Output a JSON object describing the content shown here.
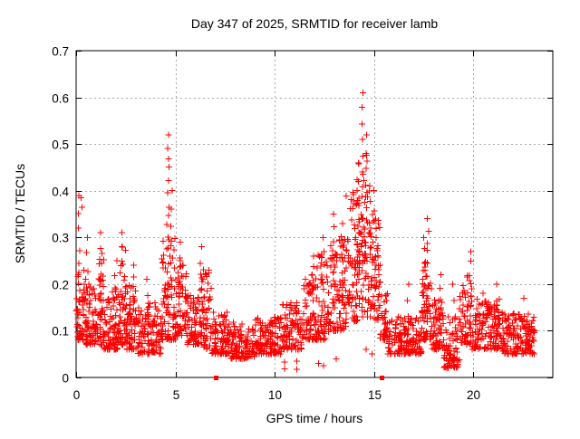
{
  "chart_data": {
    "type": "scatter",
    "title": "Day 347 of 2025, SRMTID for receiver lamb",
    "xlabel": "GPS time / hours",
    "ylabel": "SRMTID / TECUs",
    "series_name": "SRMTID",
    "marker": "plus",
    "grid": true,
    "legend": "none",
    "xlim": [
      0,
      24
    ],
    "ylim": [
      0,
      0.7
    ],
    "xticks": [
      0,
      5,
      10,
      15,
      20
    ],
    "xtick_labels": [
      "0",
      "5",
      "10",
      "15",
      "20"
    ],
    "yticks": [
      0,
      0.1,
      0.2,
      0.3,
      0.4,
      0.5,
      0.6,
      0.7
    ],
    "ytick_labels": [
      "0",
      "0.1",
      "0.2",
      "0.3",
      "0.4",
      "0.5",
      "0.6",
      "0.7"
    ],
    "colors": {
      "points": "#ff0000",
      "grid": "#a8a8a8",
      "axis": "#000000",
      "background": "#ffffff",
      "text": "#000000"
    },
    "seed": 1347,
    "bands": [
      [
        0.0,
        0.5,
        0.08,
        0.23,
        60
      ],
      [
        0.5,
        1.1,
        0.07,
        0.2,
        70
      ],
      [
        1.1,
        1.4,
        0.07,
        0.28,
        40
      ],
      [
        1.4,
        2.2,
        0.06,
        0.19,
        90
      ],
      [
        2.2,
        2.5,
        0.07,
        0.28,
        40
      ],
      [
        2.5,
        3.1,
        0.06,
        0.2,
        70
      ],
      [
        3.1,
        4.3,
        0.05,
        0.16,
        120
      ],
      [
        4.3,
        5.0,
        0.08,
        0.3,
        80
      ],
      [
        5.0,
        5.6,
        0.09,
        0.25,
        60
      ],
      [
        5.6,
        6.2,
        0.07,
        0.18,
        60
      ],
      [
        6.2,
        6.8,
        0.06,
        0.24,
        60
      ],
      [
        6.8,
        7.6,
        0.05,
        0.14,
        80
      ],
      [
        7.6,
        9.0,
        0.04,
        0.12,
        130
      ],
      [
        9.0,
        10.4,
        0.05,
        0.13,
        130
      ],
      [
        10.4,
        11.4,
        0.06,
        0.16,
        100
      ],
      [
        11.4,
        12.1,
        0.08,
        0.22,
        70
      ],
      [
        12.1,
        12.7,
        0.08,
        0.27,
        60
      ],
      [
        12.7,
        13.6,
        0.1,
        0.31,
        90
      ],
      [
        13.6,
        14.2,
        0.12,
        0.4,
        70
      ],
      [
        14.2,
        14.8,
        0.13,
        0.48,
        70
      ],
      [
        14.8,
        15.3,
        0.12,
        0.37,
        55
      ],
      [
        15.3,
        15.7,
        0.08,
        0.18,
        40
      ],
      [
        15.7,
        17.4,
        0.05,
        0.13,
        160
      ],
      [
        17.4,
        17.9,
        0.08,
        0.28,
        55
      ],
      [
        17.9,
        18.5,
        0.06,
        0.17,
        60
      ],
      [
        18.5,
        19.3,
        0.02,
        0.13,
        75
      ],
      [
        19.3,
        19.9,
        0.07,
        0.22,
        55
      ],
      [
        19.9,
        21.4,
        0.06,
        0.17,
        140
      ],
      [
        21.4,
        23.1,
        0.05,
        0.14,
        170
      ]
    ],
    "spikes": [
      [
        0.12,
        0.2,
        0.39,
        6
      ],
      [
        0.55,
        0.18,
        0.3,
        4
      ],
      [
        1.25,
        0.15,
        0.31,
        6
      ],
      [
        2.0,
        0.14,
        0.25,
        5
      ],
      [
        2.35,
        0.15,
        0.31,
        6
      ],
      [
        2.9,
        0.14,
        0.24,
        5
      ],
      [
        3.6,
        0.12,
        0.21,
        4
      ],
      [
        4.62,
        0.15,
        0.52,
        16
      ],
      [
        4.78,
        0.14,
        0.4,
        8
      ],
      [
        5.2,
        0.14,
        0.29,
        6
      ],
      [
        6.3,
        0.12,
        0.28,
        6
      ],
      [
        6.55,
        0.1,
        0.22,
        4
      ],
      [
        11.9,
        0.14,
        0.26,
        5
      ],
      [
        12.4,
        0.15,
        0.3,
        5
      ],
      [
        13.0,
        0.16,
        0.35,
        7
      ],
      [
        13.4,
        0.16,
        0.33,
        6
      ],
      [
        14.2,
        0.22,
        0.46,
        9
      ],
      [
        14.45,
        0.25,
        0.61,
        12
      ],
      [
        14.6,
        0.22,
        0.52,
        9
      ],
      [
        15.0,
        0.18,
        0.4,
        7
      ],
      [
        15.15,
        0.16,
        0.33,
        5
      ],
      [
        16.7,
        0.1,
        0.2,
        4
      ],
      [
        17.55,
        0.12,
        0.3,
        8
      ],
      [
        17.7,
        0.12,
        0.34,
        10
      ],
      [
        18.3,
        0.1,
        0.22,
        5
      ],
      [
        19.0,
        0.09,
        0.2,
        4
      ],
      [
        19.85,
        0.1,
        0.27,
        8
      ],
      [
        20.5,
        0.09,
        0.18,
        5
      ],
      [
        21.2,
        0.08,
        0.2,
        5
      ],
      [
        22.5,
        0.07,
        0.17,
        3
      ]
    ],
    "extra_points": [
      [
        10.5,
        0.033
      ],
      [
        10.5,
        0.018
      ],
      [
        11.1,
        0.035
      ],
      [
        11.1,
        0.017
      ],
      [
        12.2,
        0.03
      ],
      [
        12.45,
        0.025
      ],
      [
        13.1,
        0.04
      ],
      [
        14.6,
        0.06
      ],
      [
        14.9,
        0.05
      ],
      [
        0.25,
        0.385
      ],
      [
        0.3,
        0.365
      ],
      [
        22.8,
        0.1
      ]
    ],
    "notable_maxima": [
      [
        14.45,
        0.61
      ],
      [
        4.62,
        0.52
      ],
      [
        0.12,
        0.39
      ],
      [
        17.7,
        0.34
      ],
      [
        1.25,
        0.31
      ],
      [
        12.4,
        0.3
      ]
    ],
    "axis_markers": {
      "shape": "filled-square",
      "y": 0,
      "x": [
        7.05,
        15.4
      ]
    }
  }
}
